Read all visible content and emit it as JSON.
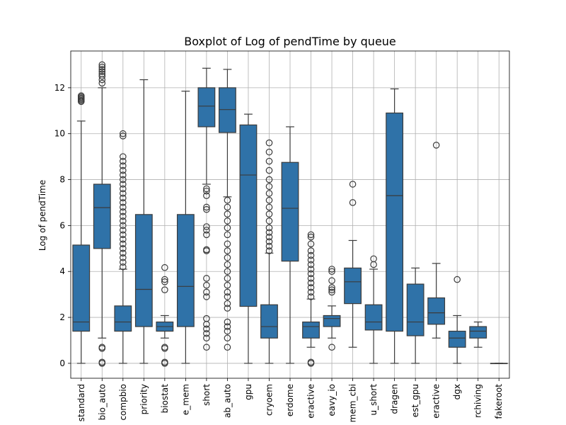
{
  "chart_data": {
    "type": "boxplot",
    "title": "Boxplot of Log of pendTime by queue",
    "xlabel": "",
    "ylabel": "Log of pendTime",
    "ylim": [
      -0.65,
      13.6
    ],
    "yticks": [
      0,
      2,
      4,
      6,
      8,
      10,
      12
    ],
    "grid": true,
    "box_color": "#2f72a8",
    "line_color": "#3b3b3b",
    "categories": [
      "standard",
      "bio_auto",
      "compbio",
      "priority",
      "biostat",
      "large_mem",
      "short",
      "lab_auto",
      "gpu",
      "cryoem",
      "superdome",
      "interactive",
      "heavy_io",
      "mem_cbi",
      "gpu_short",
      "dragen",
      "test_gpu",
      "interactive",
      "dgx",
      "archiving",
      "fakeroot"
    ],
    "tick_labels": [
      "standard",
      "bio_auto",
      "compbio",
      "priority",
      "biostat",
      "e_mem",
      "short",
      "ab_auto",
      "gpu",
      "cryoem",
      "erdome",
      "eractive",
      "eavy_io",
      "mem_cbi",
      "u_short",
      "dragen",
      "est_gpu",
      "eractive",
      "dgx",
      "rchiving",
      "fakeroot"
    ],
    "boxes": [
      {
        "whislo": 0.0,
        "q1": 1.4,
        "med": 1.8,
        "q3": 5.15,
        "whishi": 10.55,
        "fliers": [
          11.4,
          11.45,
          11.5,
          11.55,
          11.6,
          11.65
        ]
      },
      {
        "whislo": 1.1,
        "q1": 5.0,
        "med": 6.78,
        "q3": 7.8,
        "whishi": 12.0,
        "fliers": [
          0.0,
          0.05,
          0.65,
          0.7,
          12.2,
          12.35,
          12.5,
          12.6,
          12.7,
          12.8,
          12.9,
          13.0
        ]
      },
      {
        "whislo": 0.0,
        "q1": 1.4,
        "med": 1.8,
        "q3": 2.5,
        "whishi": 4.1,
        "fliers": [
          4.2,
          4.4,
          4.6,
          4.8,
          5.0,
          5.2,
          5.4,
          5.6,
          5.8,
          6.0,
          6.2,
          6.4,
          6.6,
          6.8,
          7.0,
          7.2,
          7.4,
          7.6,
          7.8,
          8.0,
          8.2,
          8.4,
          8.6,
          8.8,
          9.0,
          9.9,
          10.0
        ]
      },
      {
        "whislo": 0.0,
        "q1": 1.6,
        "med": 3.22,
        "q3": 6.48,
        "whishi": 12.35,
        "fliers": []
      },
      {
        "whislo": 1.1,
        "q1": 1.4,
        "med": 1.6,
        "q3": 1.8,
        "whishi": 2.08,
        "fliers": [
          0.0,
          0.05,
          0.65,
          0.7,
          3.2,
          3.55,
          3.65,
          4.17
        ]
      },
      {
        "whislo": 0.0,
        "q1": 1.6,
        "med": 3.35,
        "q3": 6.48,
        "whishi": 11.85,
        "fliers": []
      },
      {
        "whislo": 7.8,
        "q1": 10.3,
        "med": 11.2,
        "q3": 12.0,
        "whishi": 12.85,
        "fliers": [
          0.7,
          1.1,
          1.3,
          1.5,
          1.7,
          1.95,
          2.9,
          3.1,
          3.4,
          3.7,
          4.9,
          4.95,
          5.6,
          5.8,
          5.95,
          6.7,
          6.8,
          7.3,
          7.5,
          7.6
        ]
      },
      {
        "whislo": 7.25,
        "q1": 10.05,
        "med": 11.05,
        "q3": 12.0,
        "whishi": 12.8,
        "fliers": [
          0.7,
          1.1,
          1.4,
          1.6,
          1.8,
          2.4,
          2.6,
          2.9,
          3.1,
          3.4,
          3.7,
          4.0,
          4.3,
          4.6,
          4.9,
          5.2,
          5.6,
          5.9,
          6.2,
          6.5,
          6.8,
          7.1
        ]
      },
      {
        "whislo": 0.0,
        "q1": 2.48,
        "med": 8.2,
        "q3": 10.38,
        "whishi": 10.85,
        "fliers": []
      },
      {
        "whislo": 0.0,
        "q1": 1.1,
        "med": 1.6,
        "q3": 2.55,
        "whishi": 4.8,
        "fliers": [
          4.9,
          5.1,
          5.3,
          5.5,
          5.7,
          5.9,
          6.2,
          6.5,
          6.8,
          7.1,
          7.4,
          7.7,
          8.0,
          8.4,
          8.8,
          9.2,
          9.6
        ]
      },
      {
        "whislo": 0.0,
        "q1": 4.45,
        "med": 6.75,
        "q3": 8.75,
        "whishi": 10.3,
        "fliers": []
      },
      {
        "whislo": 0.7,
        "q1": 1.1,
        "med": 1.6,
        "q3": 1.8,
        "whishi": 2.8,
        "fliers": [
          0.0,
          0.05,
          2.9,
          3.1,
          3.3,
          3.5,
          3.7,
          3.9,
          4.1,
          4.3,
          4.5,
          4.7,
          4.9,
          5.2,
          5.5,
          5.6
        ]
      },
      {
        "whislo": 1.1,
        "q1": 1.6,
        "med": 1.95,
        "q3": 2.08,
        "whishi": 2.5,
        "fliers": [
          0.7,
          3.1,
          3.2,
          3.3,
          3.6,
          4.0,
          4.1
        ]
      },
      {
        "whislo": 0.7,
        "q1": 2.6,
        "med": 3.55,
        "q3": 4.15,
        "whishi": 5.35,
        "fliers": [
          7.0,
          7.8
        ]
      },
      {
        "whislo": 0.0,
        "q1": 1.45,
        "med": 1.8,
        "q3": 2.55,
        "whishi": 4.1,
        "fliers": [
          4.3,
          4.55
        ]
      },
      {
        "whislo": 0.0,
        "q1": 1.4,
        "med": 7.3,
        "q3": 10.9,
        "whishi": 11.95,
        "fliers": []
      },
      {
        "whislo": 0.0,
        "q1": 1.2,
        "med": 1.8,
        "q3": 3.45,
        "whishi": 4.15,
        "fliers": []
      },
      {
        "whislo": 1.1,
        "q1": 1.7,
        "med": 2.2,
        "q3": 2.85,
        "whishi": 4.35,
        "fliers": [
          9.5
        ]
      },
      {
        "whislo": 0.0,
        "q1": 0.7,
        "med": 1.1,
        "q3": 1.4,
        "whishi": 2.08,
        "fliers": [
          3.65
        ]
      },
      {
        "whislo": 0.7,
        "q1": 1.1,
        "med": 1.4,
        "q3": 1.6,
        "whishi": 1.8,
        "fliers": []
      },
      {
        "whislo": 0.0,
        "q1": 0.0,
        "med": 0.0,
        "q3": 0.0,
        "whishi": 0.0,
        "fliers": []
      }
    ]
  }
}
